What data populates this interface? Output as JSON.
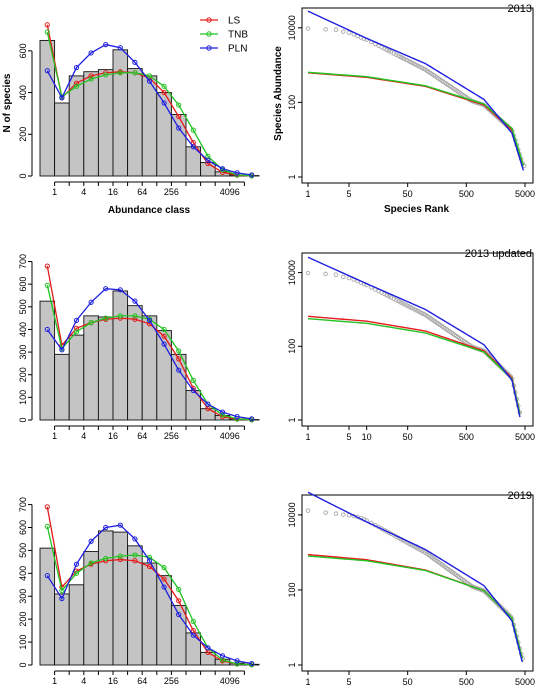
{
  "legend": {
    "position": "top",
    "entries": [
      {
        "label": "LS",
        "color": "#e41a1c"
      },
      {
        "label": "TNB",
        "color": "#22c322"
      },
      {
        "label": "PLN",
        "color": "#1f1fe0"
      }
    ]
  },
  "colors": {
    "bar_fill": "#c4c4c4",
    "empirical_points": "#aaaaaa"
  },
  "chart_data": [
    {
      "type": "bar",
      "panel": "histogram-2013",
      "xlabel": "Abundance class",
      "ylabel": "N of species",
      "x_tick_labels": [
        "1",
        "4",
        "16",
        "64",
        "256",
        "4096"
      ],
      "y_ticks": [
        0,
        200,
        400,
        600
      ],
      "ylim": [
        0,
        700
      ],
      "values": [
        650,
        350,
        480,
        500,
        510,
        605,
        515,
        480,
        400,
        295,
        140,
        65,
        20,
        5,
        2
      ],
      "series": [
        {
          "name": "LS",
          "values": [
            725,
            375,
            445,
            480,
            495,
            500,
            495,
            470,
            400,
            285,
            160,
            60,
            18,
            4,
            1
          ]
        },
        {
          "name": "TNB",
          "values": [
            690,
            380,
            430,
            465,
            485,
            495,
            495,
            480,
            430,
            340,
            220,
            95,
            30,
            6,
            1
          ]
        },
        {
          "name": "PLN",
          "values": [
            505,
            375,
            520,
            590,
            630,
            615,
            545,
            455,
            350,
            230,
            140,
            75,
            35,
            15,
            5
          ]
        }
      ]
    },
    {
      "type": "scatter",
      "panel": "rank-abundance-2013",
      "title": "2013",
      "xlabel": "Species Rank",
      "ylabel": "Species Abundance",
      "x_tick_labels": [
        "1",
        "5",
        "50",
        "500",
        "5000"
      ],
      "y_tick_labels": [
        "1",
        "100",
        "10000"
      ],
      "x_scale": "log",
      "y_scale": "log",
      "xlim": [
        1,
        5000
      ],
      "ylim": [
        1,
        30000
      ],
      "n_species": 4900,
      "points_head": [
        9500,
        9100,
        8900,
        7900,
        7400,
        6700,
        6000,
        5500,
        5100,
        4800
      ],
      "series": [
        {
          "name": "LS",
          "values_at_ranks": {
            "1": 620,
            "10": 470,
            "100": 270,
            "1000": 85,
            "3000": 18,
            "4700": 2
          }
        },
        {
          "name": "TNB",
          "values_at_ranks": {
            "1": 640,
            "10": 490,
            "100": 280,
            "1000": 90,
            "3000": 20,
            "4700": 2
          }
        },
        {
          "name": "PLN",
          "values_at_ranks": {
            "1": 28000,
            "10": 5200,
            "100": 1100,
            "1000": 120,
            "3000": 15,
            "4700": 1.5
          }
        }
      ]
    },
    {
      "type": "bar",
      "panel": "histogram-2013-updated",
      "x_tick_labels": [
        "1",
        "4",
        "16",
        "64",
        "256",
        "4096"
      ],
      "y_ticks": [
        0,
        100,
        200,
        300,
        400,
        500,
        600,
        700
      ],
      "ylim": [
        0,
        720
      ],
      "values": [
        525,
        290,
        375,
        460,
        455,
        570,
        505,
        460,
        395,
        290,
        130,
        50,
        20,
        5,
        2
      ],
      "series": [
        {
          "name": "LS",
          "values": [
            680,
            330,
            405,
            430,
            445,
            450,
            445,
            425,
            370,
            270,
            140,
            50,
            15,
            4,
            1
          ]
        },
        {
          "name": "TNB",
          "values": [
            595,
            315,
            390,
            430,
            450,
            460,
            460,
            445,
            400,
            305,
            175,
            70,
            22,
            5,
            1
          ]
        },
        {
          "name": "PLN",
          "values": [
            400,
            310,
            440,
            520,
            580,
            575,
            525,
            440,
            335,
            220,
            130,
            70,
            35,
            15,
            5
          ]
        }
      ]
    },
    {
      "type": "scatter",
      "panel": "rank-abundance-2013-updated",
      "title": "2013 updated",
      "x_tick_labels": [
        "1",
        "5",
        "10",
        "50",
        "500",
        "5000"
      ],
      "y_tick_labels": [
        "1",
        "100",
        "10000"
      ],
      "x_scale": "log",
      "y_scale": "log",
      "xlim": [
        1,
        5000
      ],
      "ylim": [
        1,
        30000
      ],
      "n_species": 4200,
      "points_head": [
        9700,
        9200,
        8800,
        7600,
        7100,
        6500,
        5900,
        5300,
        4900,
        4600
      ],
      "series": [
        {
          "name": "LS",
          "values_at_ranks": {
            "1": 650,
            "10": 480,
            "100": 260,
            "1000": 75,
            "3000": 14,
            "4100": 1.5
          }
        },
        {
          "name": "TNB",
          "values_at_ranks": {
            "1": 560,
            "10": 420,
            "100": 230,
            "1000": 70,
            "3000": 13,
            "4100": 1.5
          }
        },
        {
          "name": "PLN",
          "values_at_ranks": {
            "1": 26000,
            "10": 5000,
            "100": 1000,
            "1000": 110,
            "3000": 12,
            "4100": 1.2
          }
        }
      ]
    },
    {
      "type": "bar",
      "panel": "histogram-2019",
      "x_tick_labels": [
        "1",
        "4",
        "16",
        "64",
        "256",
        "4096"
      ],
      "y_ticks": [
        0,
        100,
        200,
        300,
        400,
        500,
        600,
        700
      ],
      "ylim": [
        0,
        720
      ],
      "values": [
        510,
        310,
        350,
        495,
        585,
        580,
        520,
        445,
        390,
        260,
        140,
        55,
        25,
        8,
        3
      ],
      "series": [
        {
          "name": "LS",
          "values": [
            690,
            340,
            410,
            440,
            455,
            460,
            455,
            430,
            375,
            280,
            150,
            55,
            18,
            5,
            1
          ]
        },
        {
          "name": "TNB",
          "values": [
            605,
            325,
            400,
            445,
            465,
            475,
            480,
            470,
            425,
            330,
            190,
            75,
            22,
            5,
            1
          ]
        },
        {
          "name": "PLN",
          "values": [
            390,
            290,
            440,
            540,
            600,
            610,
            550,
            455,
            340,
            220,
            130,
            75,
            40,
            18,
            6
          ]
        }
      ]
    },
    {
      "type": "scatter",
      "panel": "rank-abundance-2019",
      "title": "2019",
      "x_tick_labels": [
        "1",
        "5",
        "50",
        "500",
        "5000"
      ],
      "y_tick_labels": [
        "1",
        "100",
        "10000"
      ],
      "x_scale": "log",
      "y_scale": "log",
      "xlim": [
        1,
        5000
      ],
      "ylim": [
        1,
        30000
      ],
      "n_species": 4600,
      "points_head": [
        13000,
        11500,
        10800,
        10200,
        9800,
        9300,
        8800,
        8200,
        7600,
        7100
      ],
      "series": [
        {
          "name": "LS",
          "values_at_ranks": {
            "1": 880,
            "10": 640,
            "100": 340,
            "1000": 95,
            "3000": 18,
            "4500": 1.5
          }
        },
        {
          "name": "TNB",
          "values_at_ranks": {
            "1": 800,
            "10": 600,
            "100": 330,
            "1000": 95,
            "3000": 18,
            "4500": 1.5
          }
        },
        {
          "name": "PLN",
          "values_at_ranks": {
            "1": 40000,
            "10": 6500,
            "100": 1200,
            "1000": 130,
            "3000": 15,
            "4500": 1.2
          }
        }
      ]
    }
  ]
}
